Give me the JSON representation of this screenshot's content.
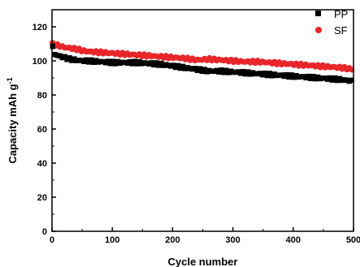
{
  "chart_data": {
    "type": "scatter",
    "xlabel": "Cycle number",
    "ylabel": "Capacity mAh g",
    "ylabel_superscript": "-1",
    "xlim": [
      0,
      500
    ],
    "ylim": [
      0,
      130
    ],
    "xticks": [
      0,
      100,
      200,
      300,
      400,
      500
    ],
    "yticks": [
      0,
      20,
      40,
      60,
      80,
      100,
      120
    ],
    "legend_position": "top-right",
    "grid": false,
    "series": [
      {
        "name": "PP",
        "color": "#000000",
        "marker": "square",
        "x": [
          1,
          3,
          5,
          10,
          20,
          30,
          40,
          50,
          60,
          80,
          100,
          120,
          140,
          160,
          180,
          200,
          220,
          240,
          260,
          280,
          300,
          320,
          340,
          360,
          380,
          400,
          420,
          440,
          460,
          480,
          500
        ],
        "y": [
          108,
          106,
          104,
          103,
          102,
          101,
          100.5,
          100,
          100,
          99.5,
          99,
          99,
          99,
          98.5,
          98,
          97,
          96,
          95,
          94,
          94,
          93.5,
          93,
          92.5,
          92,
          91.5,
          91,
          90.5,
          90,
          89.5,
          89,
          88
        ]
      },
      {
        "name": "SF",
        "color": "#e8262a",
        "marker": "circle",
        "x": [
          1,
          3,
          5,
          10,
          20,
          30,
          40,
          50,
          60,
          80,
          100,
          120,
          140,
          160,
          180,
          200,
          220,
          240,
          260,
          280,
          300,
          320,
          340,
          360,
          380,
          400,
          420,
          440,
          460,
          480,
          500
        ],
        "y": [
          110,
          110,
          109.5,
          109,
          108,
          107.5,
          107,
          106,
          105.5,
          105,
          104.5,
          104,
          103.5,
          103,
          102.5,
          102,
          101.5,
          100.5,
          101,
          100.5,
          100,
          99.5,
          99.5,
          99,
          98.5,
          98,
          97.5,
          97,
          96.5,
          96,
          95
        ]
      }
    ]
  }
}
